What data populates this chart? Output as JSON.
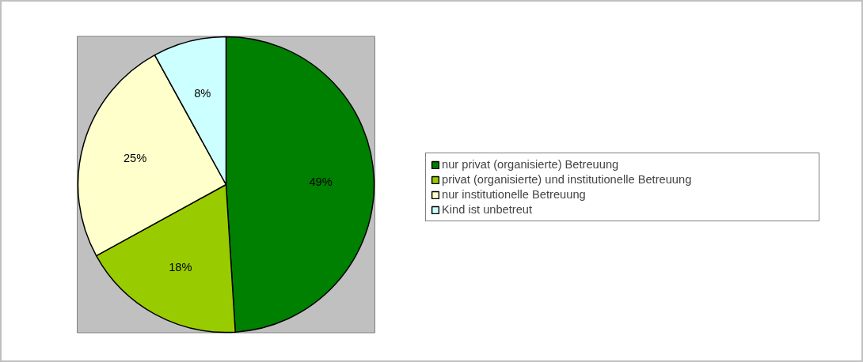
{
  "chart_data": {
    "type": "pie",
    "categories": [
      "nur privat (organisierte) Betreuung",
      "privat (organisierte) und institutionelle Betreuung",
      "nur institutionelle Betreuung",
      "Kind ist unbetreut"
    ],
    "values": [
      49,
      18,
      25,
      8
    ],
    "colors": [
      "#008000",
      "#99cc00",
      "#ffffcc",
      "#ccffff"
    ],
    "value_labels": [
      "49%",
      "18%",
      "25%",
      "8%"
    ],
    "legend": "right"
  }
}
